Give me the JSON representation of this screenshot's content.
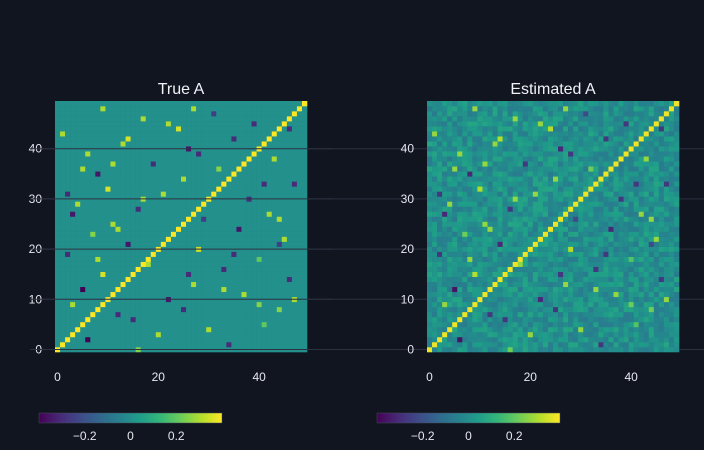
{
  "chart_data": [
    {
      "type": "heatmap",
      "title": "True A",
      "size": 50,
      "xlim": [
        0,
        49
      ],
      "ylim": [
        0,
        49
      ],
      "xticks": [
        0,
        20,
        40
      ],
      "yticks": [
        0,
        10,
        20,
        30,
        40
      ],
      "zrange": [
        -0.4,
        0.4
      ],
      "colorscale": "viridis",
      "colorbar": {
        "orientation": "horizontal",
        "position": "bottom",
        "ticks": [
          -0.2,
          0,
          0.2
        ],
        "tick_labels": [
          "−0.2",
          "0",
          "0.2"
        ]
      },
      "diagonal_value": 0.4,
      "sparse_entries": [
        [
          2,
          6,
          -0.4
        ],
        [
          4,
          30,
          0.3
        ],
        [
          5,
          41,
          0.2
        ],
        [
          7,
          12,
          -0.3
        ],
        [
          8,
          44,
          0.25
        ],
        [
          9,
          3,
          0.3
        ],
        [
          10,
          22,
          -0.35
        ],
        [
          11,
          37,
          0.3
        ],
        [
          12,
          5,
          -0.4
        ],
        [
          13,
          27,
          0.3
        ],
        [
          14,
          46,
          -0.3
        ],
        [
          15,
          9,
          0.35
        ],
        [
          16,
          33,
          -0.3
        ],
        [
          17,
          18,
          0.3
        ],
        [
          18,
          40,
          0.2
        ],
        [
          19,
          2,
          -0.3
        ],
        [
          20,
          28,
          0.35
        ],
        [
          21,
          14,
          -0.35
        ],
        [
          22,
          45,
          0.3
        ],
        [
          23,
          7,
          0.25
        ],
        [
          24,
          36,
          -0.35
        ],
        [
          25,
          11,
          0.3
        ],
        [
          26,
          29,
          -0.25
        ],
        [
          27,
          42,
          0.3
        ],
        [
          28,
          16,
          -0.3
        ],
        [
          29,
          4,
          0.3
        ],
        [
          30,
          38,
          -0.3
        ],
        [
          31,
          21,
          0.3
        ],
        [
          32,
          10,
          0.35
        ],
        [
          33,
          47,
          -0.3
        ],
        [
          34,
          25,
          0.3
        ],
        [
          35,
          8,
          -0.35
        ],
        [
          36,
          32,
          0.25
        ],
        [
          37,
          19,
          -0.3
        ],
        [
          38,
          43,
          0.3
        ],
        [
          39,
          6,
          0.3
        ],
        [
          40,
          26,
          -0.35
        ],
        [
          41,
          13,
          0.3
        ],
        [
          42,
          35,
          -0.3
        ],
        [
          43,
          1,
          0.3
        ],
        [
          44,
          24,
          0.35
        ],
        [
          45,
          39,
          -0.3
        ],
        [
          46,
          17,
          0.3
        ],
        [
          47,
          31,
          -0.25
        ],
        [
          48,
          9,
          0.3
        ],
        [
          3,
          20,
          0.3
        ],
        [
          6,
          15,
          -0.3
        ],
        [
          9,
          40,
          0.25
        ],
        [
          12,
          33,
          0.3
        ],
        [
          15,
          26,
          -0.3
        ],
        [
          18,
          8,
          0.3
        ],
        [
          21,
          44,
          -0.25
        ],
        [
          24,
          12,
          0.3
        ],
        [
          27,
          3,
          -0.35
        ],
        [
          30,
          17,
          0.3
        ],
        [
          33,
          41,
          -0.3
        ],
        [
          36,
          5,
          0.3
        ],
        [
          39,
          28,
          -0.3
        ],
        [
          42,
          14,
          0.35
        ],
        [
          45,
          22,
          0.3
        ],
        [
          1,
          34,
          -0.3
        ],
        [
          10,
          47,
          0.3
        ],
        [
          19,
          35,
          -0.3
        ],
        [
          26,
          44,
          0.3
        ],
        [
          31,
          2,
          -0.3
        ],
        [
          37,
          11,
          0.3
        ],
        [
          44,
          46,
          -0.3
        ],
        [
          48,
          27,
          0.3
        ],
        [
          0,
          16,
          0.25
        ],
        [
          8,
          25,
          -0.3
        ]
      ]
    },
    {
      "type": "heatmap",
      "title": "Estimated A",
      "size": 50,
      "xlim": [
        0,
        49
      ],
      "ylim": [
        0,
        49
      ],
      "xticks": [
        0,
        20,
        40
      ],
      "yticks": [
        0,
        10,
        20,
        30,
        40
      ],
      "zrange": [
        -0.4,
        0.4
      ],
      "colorscale": "viridis",
      "colorbar": {
        "orientation": "horizontal",
        "position": "bottom",
        "ticks": [
          -0.2,
          0,
          0.2
        ],
        "tick_labels": [
          "−0.2",
          "0",
          "0.2"
        ]
      },
      "diagonal_value": 0.38,
      "noise_amplitude": 0.07,
      "sparse_entries": [
        [
          2,
          6,
          -0.36
        ],
        [
          4,
          30,
          0.27
        ],
        [
          5,
          41,
          0.18
        ],
        [
          7,
          12,
          -0.27
        ],
        [
          8,
          44,
          0.22
        ],
        [
          9,
          3,
          0.27
        ],
        [
          10,
          22,
          -0.31
        ],
        [
          11,
          37,
          0.27
        ],
        [
          12,
          5,
          -0.36
        ],
        [
          13,
          27,
          0.27
        ],
        [
          14,
          46,
          -0.27
        ],
        [
          15,
          9,
          0.31
        ],
        [
          16,
          33,
          -0.27
        ],
        [
          17,
          18,
          0.27
        ],
        [
          18,
          40,
          0.18
        ],
        [
          19,
          2,
          -0.27
        ],
        [
          20,
          28,
          0.31
        ],
        [
          21,
          14,
          -0.31
        ],
        [
          22,
          45,
          0.27
        ],
        [
          23,
          7,
          0.22
        ],
        [
          24,
          36,
          -0.31
        ],
        [
          25,
          11,
          0.27
        ],
        [
          26,
          29,
          -0.22
        ],
        [
          27,
          42,
          0.27
        ],
        [
          28,
          16,
          -0.27
        ],
        [
          29,
          4,
          0.27
        ],
        [
          30,
          38,
          -0.27
        ],
        [
          31,
          21,
          0.27
        ],
        [
          32,
          10,
          0.31
        ],
        [
          33,
          47,
          -0.27
        ],
        [
          34,
          25,
          0.27
        ],
        [
          35,
          8,
          -0.31
        ],
        [
          36,
          32,
          0.22
        ],
        [
          37,
          19,
          -0.27
        ],
        [
          38,
          43,
          0.27
        ],
        [
          39,
          6,
          0.27
        ],
        [
          40,
          26,
          -0.31
        ],
        [
          41,
          13,
          0.27
        ],
        [
          42,
          35,
          -0.27
        ],
        [
          43,
          1,
          0.27
        ],
        [
          44,
          24,
          0.31
        ],
        [
          45,
          39,
          -0.27
        ],
        [
          46,
          17,
          0.27
        ],
        [
          47,
          31,
          -0.22
        ],
        [
          48,
          9,
          0.27
        ],
        [
          3,
          20,
          0.27
        ],
        [
          6,
          15,
          -0.27
        ],
        [
          9,
          40,
          0.22
        ],
        [
          12,
          33,
          0.27
        ],
        [
          15,
          26,
          -0.27
        ],
        [
          18,
          8,
          0.27
        ],
        [
          21,
          44,
          -0.22
        ],
        [
          24,
          12,
          0.27
        ],
        [
          27,
          3,
          -0.31
        ],
        [
          30,
          17,
          0.27
        ],
        [
          33,
          41,
          -0.27
        ],
        [
          36,
          5,
          0.27
        ],
        [
          39,
          28,
          -0.27
        ],
        [
          42,
          14,
          0.31
        ],
        [
          45,
          22,
          0.27
        ],
        [
          1,
          34,
          -0.27
        ],
        [
          10,
          47,
          0.27
        ],
        [
          19,
          35,
          -0.27
        ],
        [
          26,
          44,
          0.27
        ],
        [
          31,
          2,
          -0.27
        ],
        [
          37,
          11,
          0.27
        ],
        [
          44,
          46,
          -0.27
        ],
        [
          48,
          27,
          0.27
        ],
        [
          0,
          16,
          0.22
        ],
        [
          8,
          25,
          -0.27
        ]
      ]
    }
  ]
}
